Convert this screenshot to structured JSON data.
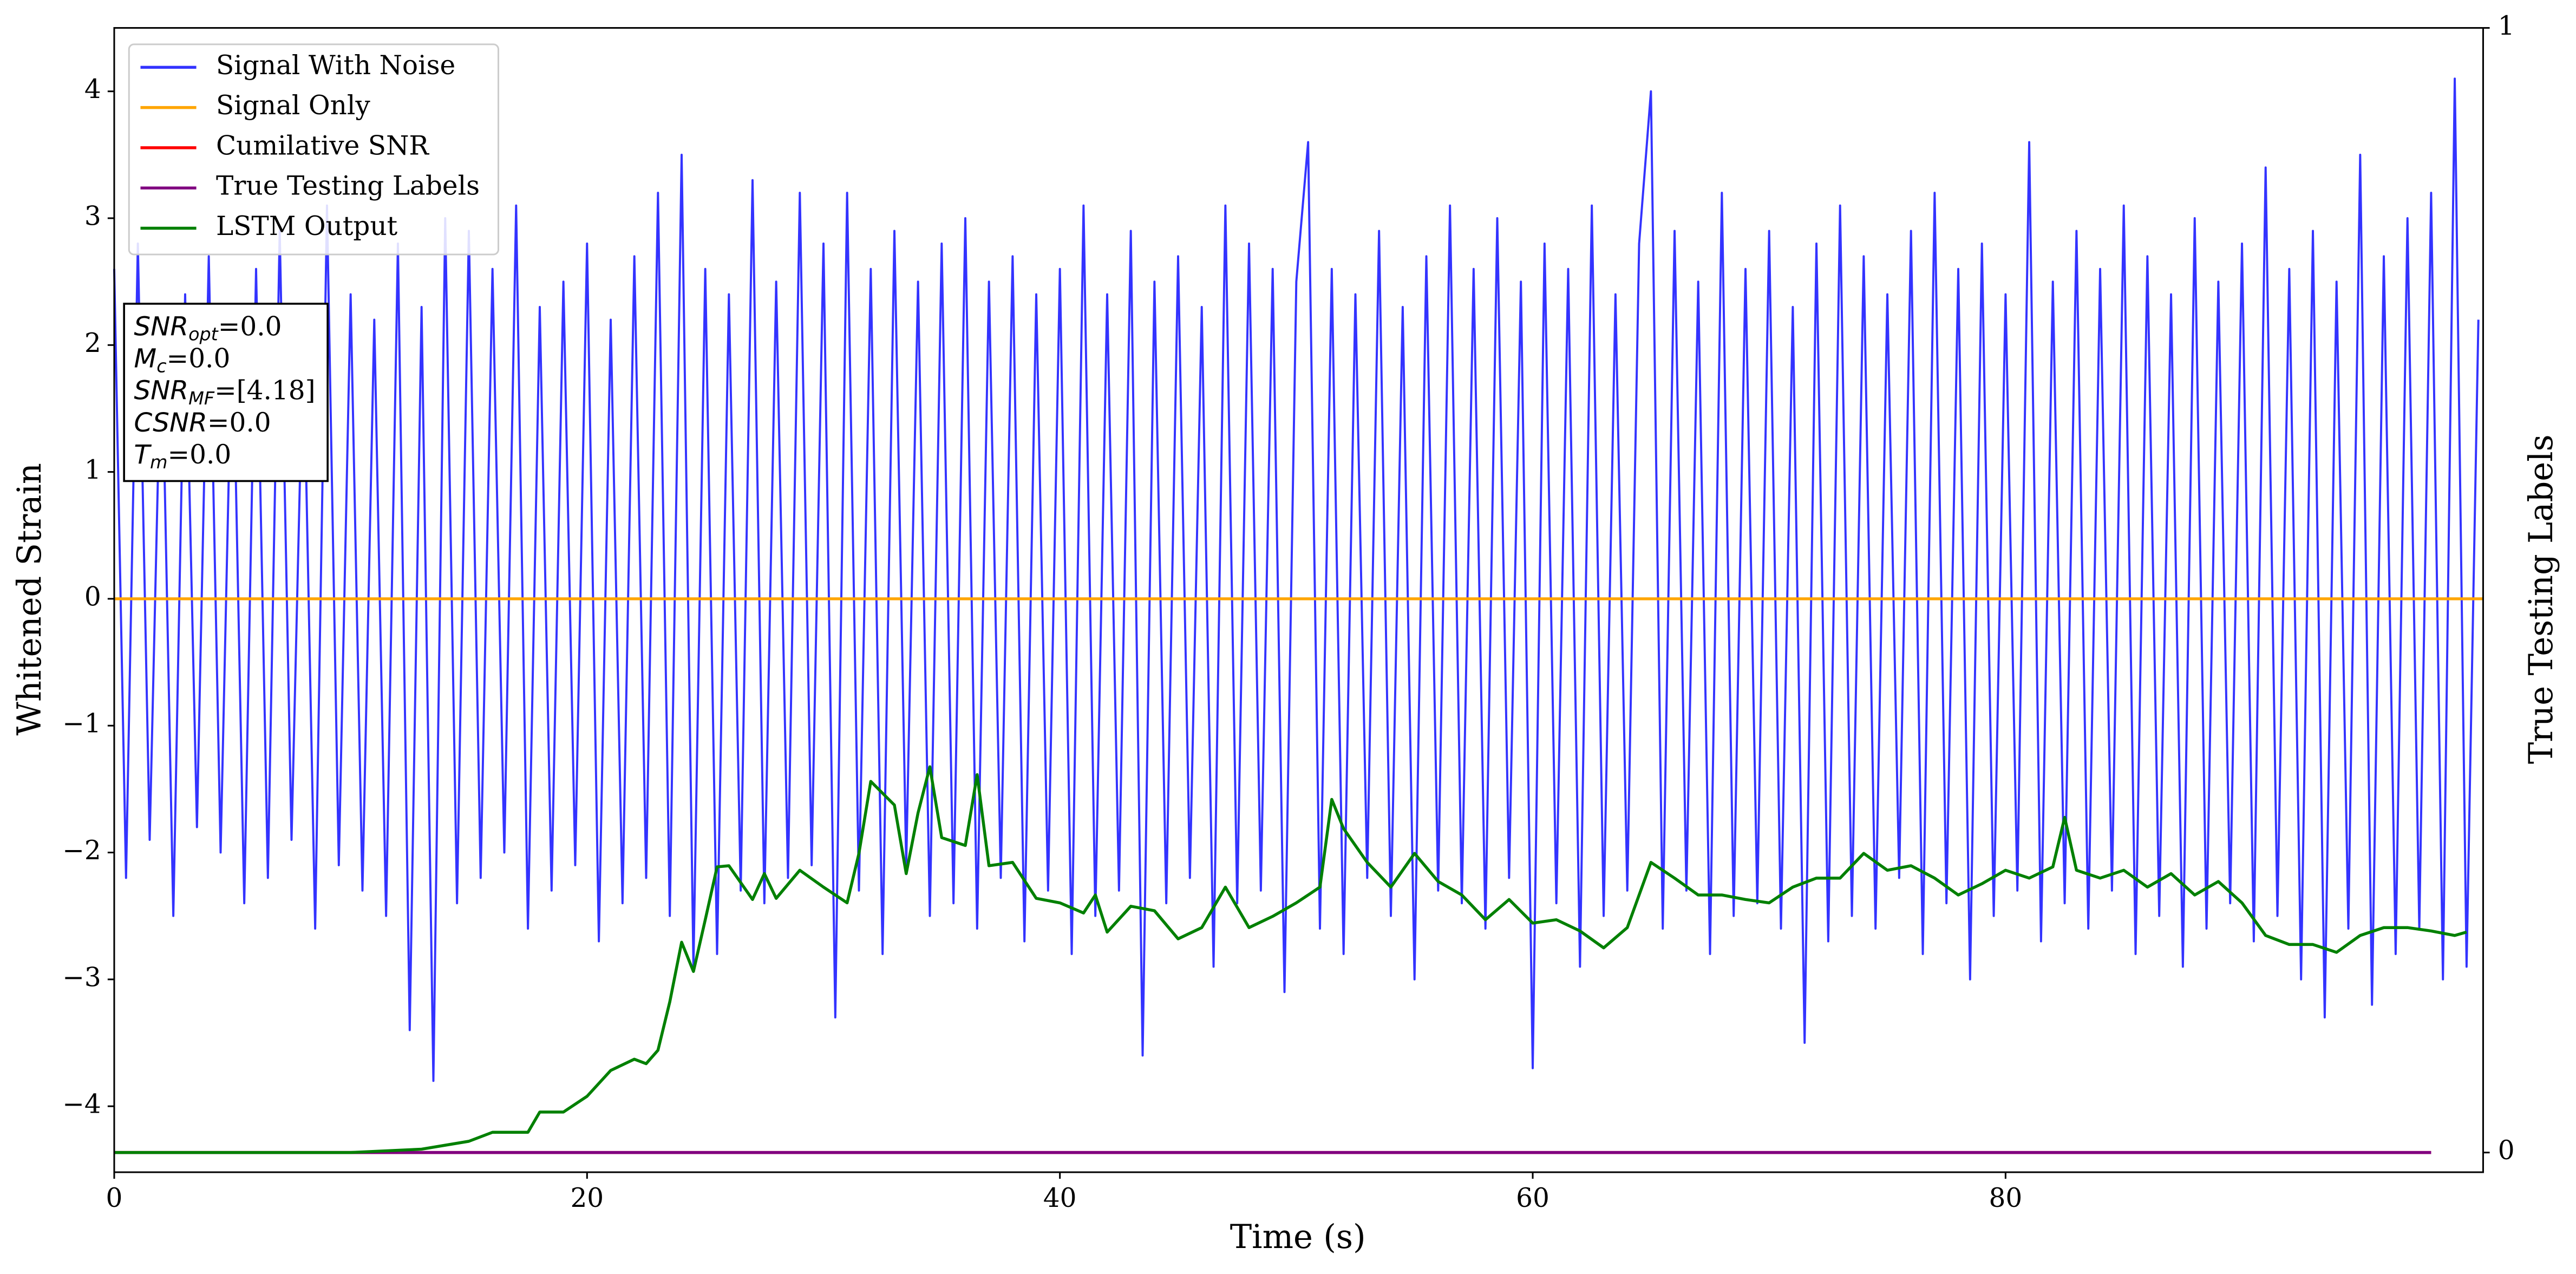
{
  "chart_data": {
    "type": "line",
    "xlabel": "Time (s)",
    "ylabel": "Whitened Strain",
    "y2label": "True Testing Labels",
    "xlim": [
      0,
      100.2
    ],
    "ylim": [
      -4.52,
      4.5
    ],
    "y2lim": [
      -0.0175,
      1
    ],
    "xticks": [
      0,
      20,
      40,
      60,
      80
    ],
    "yticks": [
      {
        "value": -4,
        "label": "−4"
      },
      {
        "value": -3,
        "label": "−3"
      },
      {
        "value": -2,
        "label": "−2"
      },
      {
        "value": -1,
        "label": "−1"
      },
      0,
      1,
      2,
      3,
      4
    ],
    "y2ticks": [
      0,
      1
    ],
    "legend": "upper left",
    "annotations": [
      {
        "text": "SNR",
        "sub": "opt",
        "value": "=0.0"
      },
      {
        "text": "M",
        "sub": "c",
        "value": "=0.0"
      },
      {
        "text": "SNR",
        "sub": "MF",
        "value": "=[4.18]"
      },
      {
        "text": "CSNR",
        "value": "=0.0"
      },
      {
        "text": "T",
        "sub": "m",
        "value": "=0.0"
      }
    ],
    "series": [
      {
        "name": "Signal With Noise",
        "color": "#3333ff",
        "axis": "y",
        "x": [
          0,
          0.5,
          1,
          1.5,
          2,
          2.5,
          3,
          3.5,
          4,
          4.5,
          5,
          5.5,
          6,
          6.5,
          7,
          7.5,
          8,
          8.5,
          9,
          9.5,
          10,
          10.5,
          11,
          11.5,
          12,
          12.5,
          13,
          13.5,
          14,
          14.5,
          15,
          15.5,
          16,
          16.5,
          17,
          17.5,
          18,
          18.5,
          19,
          19.5,
          20,
          20.5,
          21,
          21.5,
          22,
          22.5,
          23,
          23.5,
          24,
          24.5,
          25,
          25.5,
          26,
          26.5,
          27,
          27.5,
          28,
          28.5,
          29,
          29.5,
          30,
          30.5,
          31,
          31.5,
          32,
          32.5,
          33,
          33.5,
          34,
          34.5,
          35,
          35.5,
          36,
          36.5,
          37,
          37.5,
          38,
          38.5,
          39,
          39.5,
          40,
          40.5,
          41,
          41.5,
          42,
          42.5,
          43,
          43.5,
          44,
          44.5,
          45,
          45.5,
          46,
          46.5,
          47,
          47.5,
          48,
          48.5,
          49,
          49.5,
          50,
          50.5,
          51,
          51.5,
          52,
          52.5,
          53,
          53.5,
          54,
          54.5,
          55,
          55.5,
          56,
          56.5,
          57,
          57.5,
          58,
          58.5,
          59,
          59.5,
          60,
          60.5,
          61,
          61.5,
          62,
          62.5,
          63,
          63.5,
          64,
          64.5,
          65,
          65.5,
          66,
          66.5,
          67,
          67.5,
          68,
          68.5,
          69,
          69.5,
          70,
          70.5,
          71,
          71.5,
          72,
          72.5,
          73,
          73.5,
          74,
          74.5,
          75,
          75.5,
          76,
          76.5,
          77,
          77.5,
          78,
          78.5,
          79,
          79.5,
          80,
          80.5,
          81,
          81.5,
          82,
          82.5,
          83,
          83.5,
          84,
          84.5,
          85,
          85.5,
          86,
          86.5,
          87,
          87.5,
          88,
          88.5,
          89,
          89.5,
          90,
          90.5,
          91,
          91.5,
          92,
          92.5,
          93,
          93.5,
          94,
          94.5,
          95,
          95.5,
          96,
          96.5,
          97,
          97.5,
          98,
          98.5,
          99,
          99.5,
          100
        ],
        "values": [
          2.6,
          -2.2,
          2.8,
          -1.9,
          2.2,
          -2.5,
          2.4,
          -1.8,
          2.7,
          -2.0,
          2.3,
          -2.4,
          2.6,
          -2.2,
          2.9,
          -1.9,
          2.1,
          -2.6,
          3.1,
          -2.1,
          2.4,
          -2.3,
          2.2,
          -2.5,
          2.8,
          -3.4,
          2.3,
          -3.8,
          3.0,
          -2.4,
          2.9,
          -2.2,
          2.6,
          -2.0,
          3.1,
          -2.6,
          2.3,
          -2.3,
          2.5,
          -2.1,
          2.8,
          -2.7,
          2.2,
          -2.4,
          2.7,
          -2.2,
          3.2,
          -2.5,
          3.5,
          -2.9,
          2.6,
          -2.8,
          2.4,
          -2.3,
          3.3,
          -2.4,
          2.5,
          -2.2,
          3.2,
          -2.1,
          2.8,
          -3.3,
          3.2,
          -2.3,
          2.6,
          -2.8,
          2.9,
          -2.1,
          2.5,
          -2.5,
          2.8,
          -2.4,
          3.0,
          -2.6,
          2.5,
          -2.2,
          2.7,
          -2.7,
          2.4,
          -2.3,
          2.6,
          -2.8,
          3.1,
          -2.5,
          2.4,
          -2.3,
          2.9,
          -3.6,
          2.5,
          -2.4,
          2.7,
          -2.2,
          2.3,
          -2.9,
          3.1,
          -2.4,
          2.8,
          -2.3,
          2.6,
          -3.1,
          2.5,
          3.6,
          -2.6,
          2.6,
          -2.8,
          2.4,
          -2.2,
          2.9,
          -2.5,
          2.3,
          -3.0,
          2.7,
          -2.3,
          3.1,
          -2.4,
          2.6,
          -2.6,
          3.0,
          -2.2,
          2.5,
          -3.7,
          2.8,
          -2.4,
          2.6,
          -2.9,
          3.1,
          -2.5,
          2.4,
          -2.3,
          2.8,
          4.0,
          -2.6,
          2.9,
          -2.3,
          2.5,
          -2.8,
          3.2,
          -2.5,
          2.6,
          -2.4,
          2.9,
          -2.6,
          2.3,
          -3.5,
          2.8,
          -2.7,
          3.1,
          -2.5,
          2.7,
          -2.6,
          2.4,
          -2.2,
          2.9,
          -2.8,
          3.2,
          -2.4,
          2.6,
          -3.0,
          2.8,
          -2.5,
          2.4,
          -2.3,
          3.6,
          -2.7,
          2.5,
          -2.4,
          2.9,
          -2.6,
          2.6,
          -2.3,
          3.1,
          -2.8,
          2.7,
          -2.5,
          2.4,
          -2.9,
          3.0,
          -2.6,
          2.5,
          -2.4,
          2.8,
          -2.7,
          3.4,
          -2.5,
          2.6,
          -3.0,
          2.9,
          -3.3,
          2.5,
          -2.6,
          3.5,
          -3.2,
          2.7,
          -2.8,
          3.0,
          -2.6,
          3.2,
          -3.0,
          4.1,
          -2.9,
          2.2
        ]
      },
      {
        "name": "Signal Only",
        "color": "#ffa500",
        "axis": "y",
        "x": [
          0,
          100.2
        ],
        "values": [
          0,
          0
        ]
      },
      {
        "name": "Cumilative SNR",
        "color": "#ff0000",
        "axis": "y2",
        "x": [
          0,
          98
        ],
        "values": [
          0,
          0
        ]
      },
      {
        "name": "True Testing Labels",
        "color": "#800080",
        "axis": "y2",
        "x": [
          0,
          98
        ],
        "values": [
          0,
          0
        ]
      },
      {
        "name": "LSTM Output",
        "color": "#008000",
        "axis": "y2",
        "x": [
          0,
          10,
          13,
          15,
          16,
          17.5,
          18,
          19,
          20,
          21,
          22,
          22.5,
          23,
          23.5,
          24,
          24.5,
          25,
          25.5,
          26,
          27,
          27.5,
          28,
          29,
          30,
          31,
          31.5,
          32,
          33,
          33.5,
          34,
          34.5,
          35,
          36,
          36.5,
          37,
          38,
          39,
          40,
          41,
          41.5,
          42,
          43,
          44,
          45,
          46,
          47,
          48,
          49,
          50,
          51,
          51.5,
          52,
          53,
          54,
          55,
          56,
          57,
          58,
          59,
          60,
          61,
          62,
          63,
          64,
          65,
          66,
          67,
          68,
          69,
          70,
          71,
          72,
          73,
          74,
          75,
          76,
          77,
          78,
          79,
          80,
          81,
          82,
          82.5,
          83,
          84,
          85,
          86,
          87,
          88,
          89,
          90,
          91,
          92,
          93,
          94,
          95,
          96,
          97,
          98,
          99,
          99.5
        ],
        "values": [
          0,
          0,
          0.003,
          0.01,
          0.018,
          0.018,
          0.036,
          0.036,
          0.05,
          0.073,
          0.083,
          0.079,
          0.091,
          0.134,
          0.187,
          0.161,
          0.207,
          0.254,
          0.255,
          0.225,
          0.248,
          0.226,
          0.251,
          0.236,
          0.222,
          0.266,
          0.33,
          0.309,
          0.248,
          0.302,
          0.343,
          0.28,
          0.273,
          0.336,
          0.255,
          0.258,
          0.226,
          0.222,
          0.213,
          0.229,
          0.196,
          0.219,
          0.215,
          0.19,
          0.2,
          0.236,
          0.2,
          0.21,
          0.222,
          0.236,
          0.314,
          0.288,
          0.258,
          0.236,
          0.266,
          0.241,
          0.229,
          0.207,
          0.225,
          0.204,
          0.207,
          0.197,
          0.182,
          0.2,
          0.258,
          0.244,
          0.229,
          0.229,
          0.225,
          0.222,
          0.236,
          0.244,
          0.244,
          0.266,
          0.251,
          0.255,
          0.244,
          0.229,
          0.239,
          0.251,
          0.244,
          0.254,
          0.298,
          0.251,
          0.244,
          0.251,
          0.236,
          0.248,
          0.229,
          0.241,
          0.222,
          0.193,
          0.185,
          0.185,
          0.178,
          0.193,
          0.2,
          0.2,
          0.197,
          0.193,
          0.196
        ]
      }
    ]
  }
}
